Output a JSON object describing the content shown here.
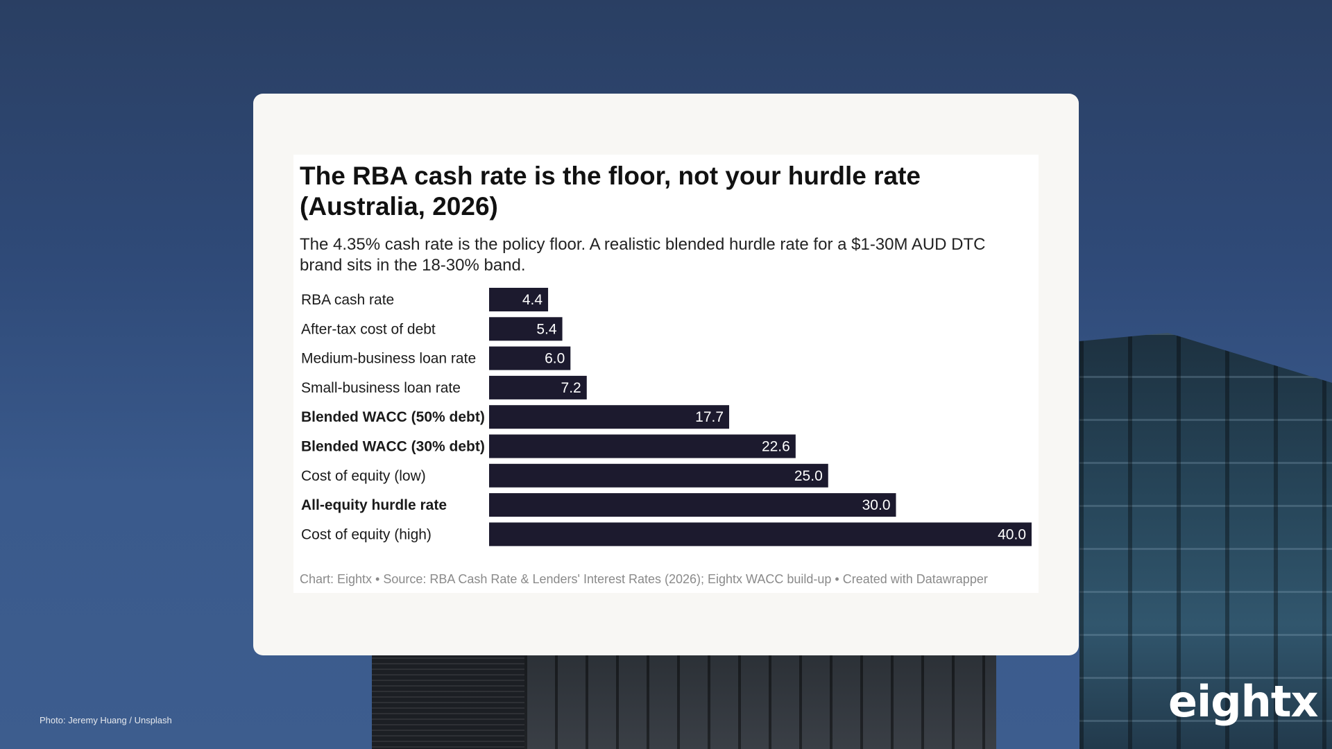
{
  "chart_data": {
    "type": "bar",
    "orientation": "horizontal",
    "title": "The RBA cash rate is the floor, not your hurdle rate (Australia, 2026)",
    "subtitle": "The 4.35% cash rate is the policy floor. A realistic blended hurdle rate for a $1-30M AUD DTC brand sits in the 18-30% band.",
    "categories": [
      "RBA cash rate",
      "After-tax cost of debt",
      "Medium-business loan rate",
      "Small-business loan rate",
      "Blended WACC (50% debt)",
      "Blended WACC (30% debt)",
      "Cost of equity (low)",
      "All-equity hurdle rate",
      "Cost of equity (high)"
    ],
    "emphasized": [
      false,
      false,
      false,
      false,
      true,
      true,
      false,
      true,
      false
    ],
    "values": [
      4.35,
      5.4,
      6.0,
      7.2,
      17.7,
      22.6,
      25.0,
      30.0,
      40.0
    ],
    "value_labels": [
      "4.4",
      "5.4",
      "6.0",
      "7.2",
      "17.7",
      "22.6",
      "25.0",
      "30.0",
      "40.0"
    ],
    "xlim": [
      0,
      40
    ],
    "bar_color": "#1c1a2e",
    "footer": "Chart: Eightx • Source: RBA Cash Rate & Lenders' Interest Rates (2026); Eightx WACC build-up • Created with Datawrapper",
    "grid": false,
    "legend": "none"
  },
  "photo_credit": "Photo: Jeremy Huang / Unsplash",
  "brand": "eightx",
  "colors": {
    "card_background": "#f8f7f4",
    "bar": "#1c1a2e"
  }
}
